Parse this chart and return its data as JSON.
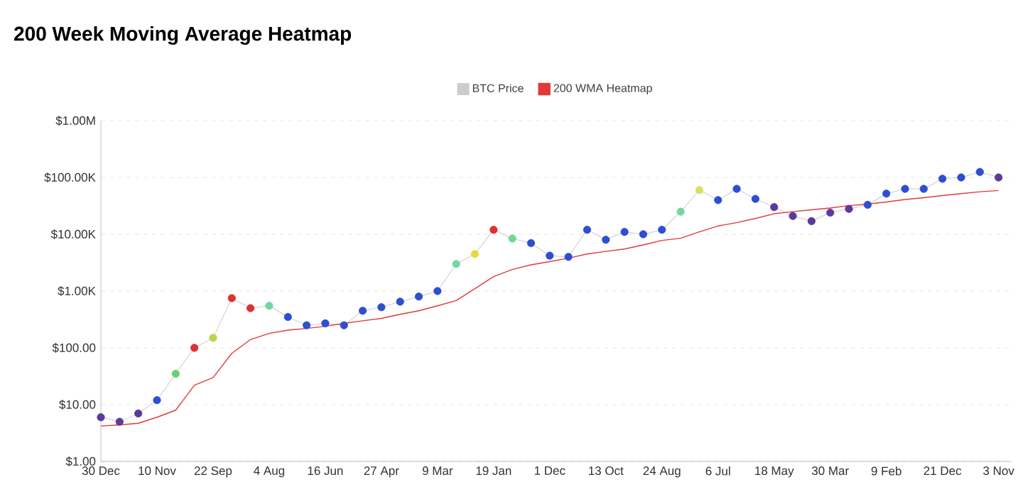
{
  "chart_data": {
    "type": "line",
    "title": "200 Week Moving Average Heatmap",
    "categories": [
      "30 Dec",
      null,
      null,
      "10 Nov",
      null,
      null,
      "22 Sep",
      null,
      null,
      "4 Aug",
      null,
      null,
      "16 Jun",
      null,
      null,
      "27 Apr",
      null,
      null,
      "9 Mar",
      null,
      null,
      "19 Jan",
      null,
      null,
      "1 Dec",
      null,
      null,
      "13 Oct",
      null,
      null,
      "24 Aug",
      null,
      null,
      "6 Jul",
      null,
      null,
      "18 May",
      null,
      null,
      "30 Mar",
      null,
      null,
      "9 Feb",
      null,
      null,
      "21 Dec",
      null,
      null,
      "3 Nov"
    ],
    "series": [
      {
        "name": "BTC Price",
        "color": "#cccccc",
        "marker": "circle",
        "values": [
          6,
          5,
          7,
          12,
          35,
          100,
          150,
          750,
          500,
          550,
          350,
          250,
          270,
          250,
          450,
          520,
          650,
          800,
          1000,
          3000,
          4500,
          12000,
          8400,
          7000,
          4200,
          4000,
          12000,
          8000,
          11000,
          10000,
          12000,
          25000,
          60000,
          40000,
          63000,
          42000,
          30000,
          21000,
          17000,
          24000,
          28000,
          33000,
          52000,
          63000,
          63000,
          95000,
          100000,
          125000,
          100000
        ],
        "colors": [
          "#5b3a9a",
          "#5b3a9a",
          "#5b3a9a",
          "#2d4fd0",
          "#6bd06b",
          "#e03030",
          "#b8d848",
          "#e03030",
          "#e03030",
          "#70d8a0",
          "#2d4fd0",
          "#2d4fd0",
          "#2d4fd0",
          "#2d4fd0",
          "#2d4fd0",
          "#2d4fd0",
          "#2d4fd0",
          "#2d4fd0",
          "#2d4fd0",
          "#70d8a0",
          "#e8d840",
          "#e03030",
          "#70d890",
          "#2d4fd0",
          "#2d4fd0",
          "#2d4fd0",
          "#2d4fd0",
          "#2d4fd0",
          "#2d4fd0",
          "#2d4fd0",
          "#2d4fd0",
          "#70d8a0",
          "#d8e060",
          "#2d4fd0",
          "#2d4fd0",
          "#2d4fd0",
          "#5b3a9a",
          "#5b3a9a",
          "#5b3a9a",
          "#5b3a9a",
          "#5b3a9a",
          "#2d4fd0",
          "#2d4fd0",
          "#2d4fd0",
          "#2d4fd0",
          "#2d4fd0",
          "#2d4fd0",
          "#2d4fd0",
          "#5b3a9a"
        ]
      },
      {
        "name": "200 WMA Heatmap",
        "color": "#e03a3a",
        "marker": "none",
        "values": [
          4.2,
          4.4,
          4.7,
          6,
          8,
          22,
          30,
          80,
          140,
          180,
          205,
          220,
          240,
          270,
          300,
          330,
          390,
          450,
          550,
          680,
          1100,
          1800,
          2400,
          2900,
          3300,
          3800,
          4500,
          5000,
          5500,
          6500,
          7800,
          8500,
          11000,
          14000,
          16000,
          19000,
          23000,
          25000,
          27000,
          29000,
          32000,
          34000,
          37000,
          41000,
          44000,
          48000,
          52000,
          56000,
          59000
        ]
      }
    ],
    "log": "y",
    "ylim": [
      1,
      1000000
    ],
    "yticks": [
      {
        "value": 1,
        "label": "$1.00"
      },
      {
        "value": 10,
        "label": "$10.00"
      },
      {
        "value": 100,
        "label": "$100.00"
      },
      {
        "value": 1000,
        "label": "$1.00K"
      },
      {
        "value": 10000,
        "label": "$10.00K"
      },
      {
        "value": 100000,
        "label": "$100.00K"
      },
      {
        "value": 1000000,
        "label": "$1.00M"
      }
    ],
    "grid": "y",
    "legend": "top"
  }
}
